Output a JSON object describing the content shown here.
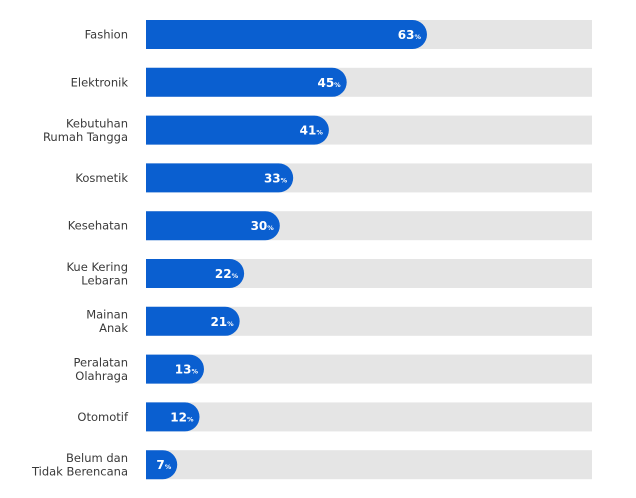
{
  "chart_data": {
    "type": "bar",
    "orientation": "horizontal",
    "categories": [
      [
        "Fashion"
      ],
      [
        "Elektronik"
      ],
      [
        "Kebutuhan",
        "Rumah Tangga"
      ],
      [
        "Kosmetik"
      ],
      [
        "Kesehatan"
      ],
      [
        "Kue Kering",
        "Lebaran"
      ],
      [
        "Mainan",
        "Anak"
      ],
      [
        "Peralatan",
        "Olahraga"
      ],
      [
        "Otomotif"
      ],
      [
        "Belum dan",
        "Tidak Berencana"
      ]
    ],
    "values": [
      63,
      45,
      41,
      33,
      30,
      22,
      21,
      13,
      12,
      7
    ],
    "value_suffix": "%",
    "xlim": [
      0,
      100
    ],
    "grid": false,
    "legend": "none",
    "colors": {
      "bar": "#0a5fd0",
      "track": "#e5e5e5",
      "label": "#3a3a3a",
      "value_text": "#ffffff"
    }
  }
}
